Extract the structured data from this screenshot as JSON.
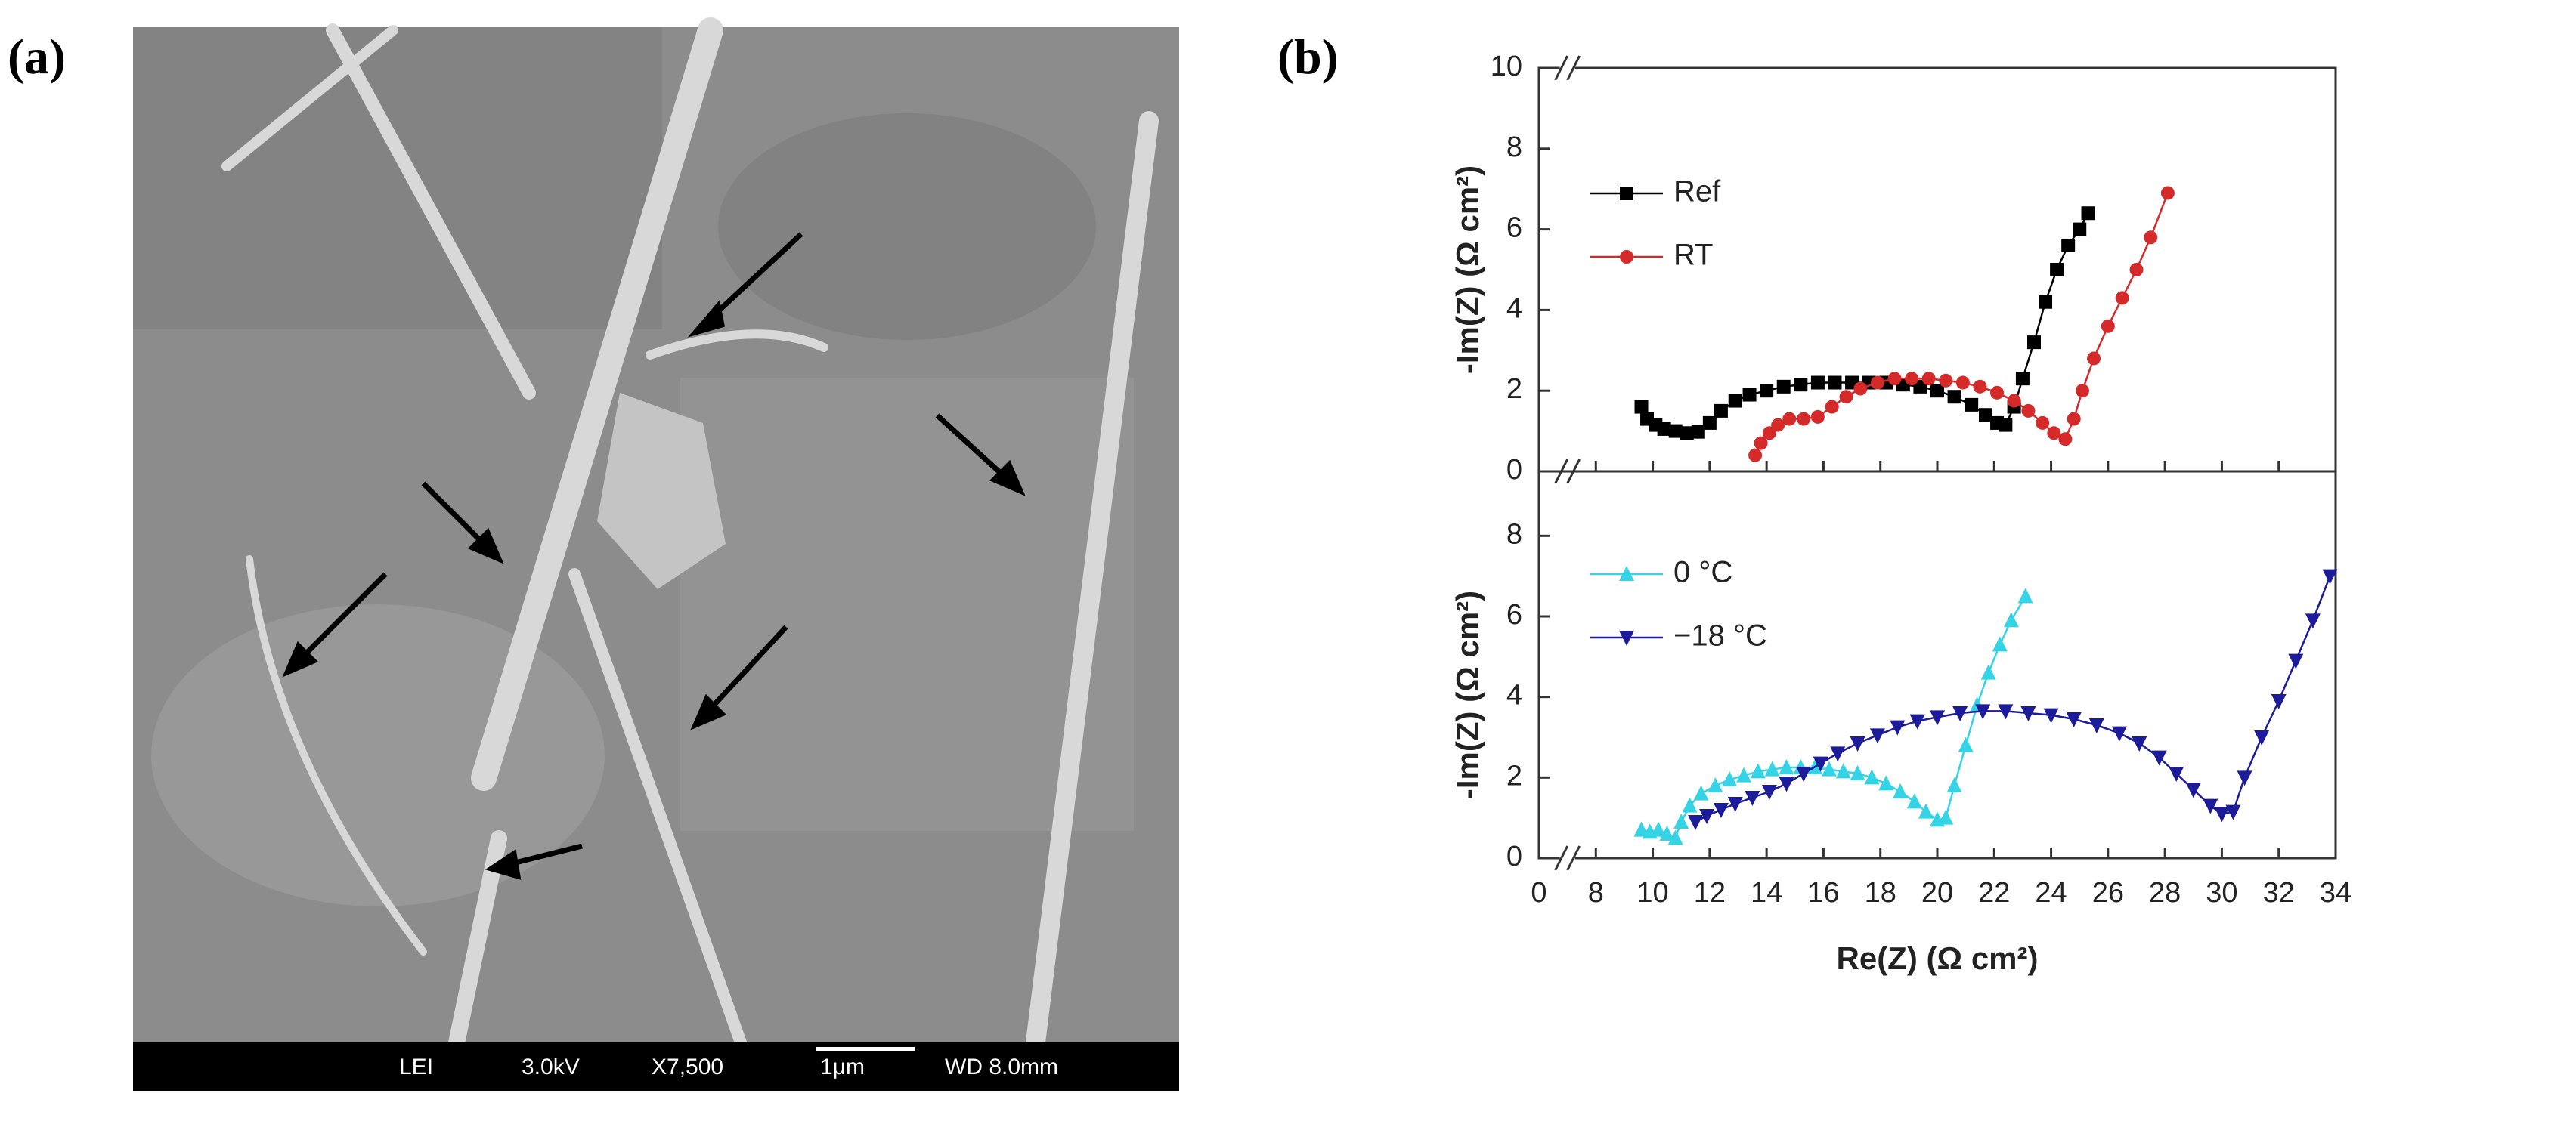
{
  "panel_labels": [
    "(a)",
    "(b)"
  ],
  "sem_image": {
    "info": [
      "LEI",
      "3.0kV",
      "X7,500",
      "1μm",
      "WD 8.0mm"
    ]
  },
  "chart_data": [
    {
      "type": "line",
      "ylabel": "-Im(Z) (Ω cm²)",
      "xlim": [
        0,
        34
      ],
      "ylim": [
        0,
        10
      ],
      "yticks": [
        0,
        2,
        4,
        6,
        8,
        10
      ],
      "series": [
        {
          "name": "Ref",
          "color": "#000000",
          "marker": "square",
          "x": [
            9.6,
            9.8,
            10.1,
            10.4,
            10.8,
            11.2,
            11.6,
            12.0,
            12.4,
            12.9,
            13.4,
            14.0,
            14.6,
            15.2,
            15.8,
            16.4,
            17.0,
            17.6,
            18.2,
            18.8,
            19.4,
            20.0,
            20.6,
            21.2,
            21.7,
            22.1,
            22.4,
            22.7,
            23.0,
            23.4,
            23.8,
            24.2,
            24.6,
            25.0,
            25.3
          ],
          "values": [
            1.6,
            1.3,
            1.15,
            1.05,
            1.0,
            0.95,
            0.98,
            1.2,
            1.5,
            1.75,
            1.9,
            2.0,
            2.1,
            2.15,
            2.2,
            2.2,
            2.2,
            2.2,
            2.2,
            2.15,
            2.1,
            2.0,
            1.85,
            1.65,
            1.4,
            1.2,
            1.15,
            1.6,
            2.3,
            3.2,
            4.2,
            5.0,
            5.6,
            6.0,
            6.4
          ]
        },
        {
          "name": "RT",
          "color": "#d42a2a",
          "marker": "circle",
          "x": [
            13.6,
            13.8,
            14.1,
            14.4,
            14.8,
            15.3,
            15.8,
            16.3,
            16.8,
            17.3,
            17.9,
            18.5,
            19.1,
            19.7,
            20.3,
            20.9,
            21.5,
            22.1,
            22.7,
            23.2,
            23.7,
            24.1,
            24.5,
            24.8,
            25.1,
            25.5,
            26.0,
            26.5,
            27.0,
            27.5,
            28.1
          ],
          "values": [
            0.4,
            0.7,
            0.95,
            1.15,
            1.3,
            1.3,
            1.35,
            1.6,
            1.85,
            2.05,
            2.2,
            2.3,
            2.3,
            2.3,
            2.25,
            2.2,
            2.1,
            1.95,
            1.75,
            1.5,
            1.2,
            0.95,
            0.8,
            1.3,
            2.0,
            2.8,
            3.6,
            4.3,
            5.0,
            5.8,
            6.9
          ]
        }
      ]
    },
    {
      "type": "line",
      "xlabel": "Re(Z) (Ω cm²)",
      "ylabel": "-Im(Z) (Ω cm²)",
      "xlim": [
        0,
        34
      ],
      "x_break": [
        0,
        8
      ],
      "xticks": [
        0,
        8,
        10,
        12,
        14,
        16,
        18,
        20,
        22,
        24,
        26,
        28,
        30,
        32,
        34
      ],
      "ylim": [
        0,
        9.6
      ],
      "yticks": [
        0,
        2,
        4,
        6,
        8
      ],
      "series": [
        {
          "name": "0 °C",
          "color": "#35d3e6",
          "marker": "triangle-up",
          "x": [
            9.6,
            9.9,
            10.2,
            10.5,
            10.8,
            11.0,
            11.3,
            11.7,
            12.2,
            12.7,
            13.2,
            13.7,
            14.2,
            14.7,
            15.2,
            15.7,
            16.2,
            16.7,
            17.2,
            17.7,
            18.2,
            18.7,
            19.2,
            19.6,
            20.0,
            20.3,
            20.6,
            21.0,
            21.4,
            21.8,
            22.2,
            22.6,
            23.1
          ],
          "values": [
            0.7,
            0.65,
            0.7,
            0.6,
            0.5,
            0.9,
            1.3,
            1.6,
            1.8,
            1.95,
            2.05,
            2.15,
            2.2,
            2.25,
            2.25,
            2.25,
            2.2,
            2.15,
            2.1,
            2.0,
            1.85,
            1.65,
            1.4,
            1.15,
            0.95,
            1.0,
            1.8,
            2.8,
            3.8,
            4.6,
            5.3,
            5.9,
            6.5
          ]
        },
        {
          "name": "−18 °C",
          "color": "#1c1c9a",
          "marker": "triangle-down",
          "x": [
            11.5,
            11.9,
            12.4,
            12.9,
            13.5,
            14.1,
            14.7,
            15.3,
            15.9,
            16.5,
            17.2,
            17.9,
            18.6,
            19.3,
            20.0,
            20.8,
            21.6,
            22.4,
            23.2,
            24.0,
            24.8,
            25.6,
            26.4,
            27.1,
            27.8,
            28.4,
            29.0,
            29.6,
            30.0,
            30.4,
            30.8,
            31.4,
            32.0,
            32.6,
            33.2,
            33.8
          ],
          "values": [
            0.9,
            1.05,
            1.2,
            1.35,
            1.5,
            1.65,
            1.85,
            2.1,
            2.35,
            2.6,
            2.85,
            3.05,
            3.25,
            3.4,
            3.5,
            3.6,
            3.65,
            3.65,
            3.6,
            3.55,
            3.45,
            3.3,
            3.1,
            2.85,
            2.5,
            2.1,
            1.7,
            1.3,
            1.1,
            1.15,
            2.0,
            3.0,
            3.9,
            4.9,
            5.9,
            7.0
          ]
        }
      ]
    }
  ]
}
